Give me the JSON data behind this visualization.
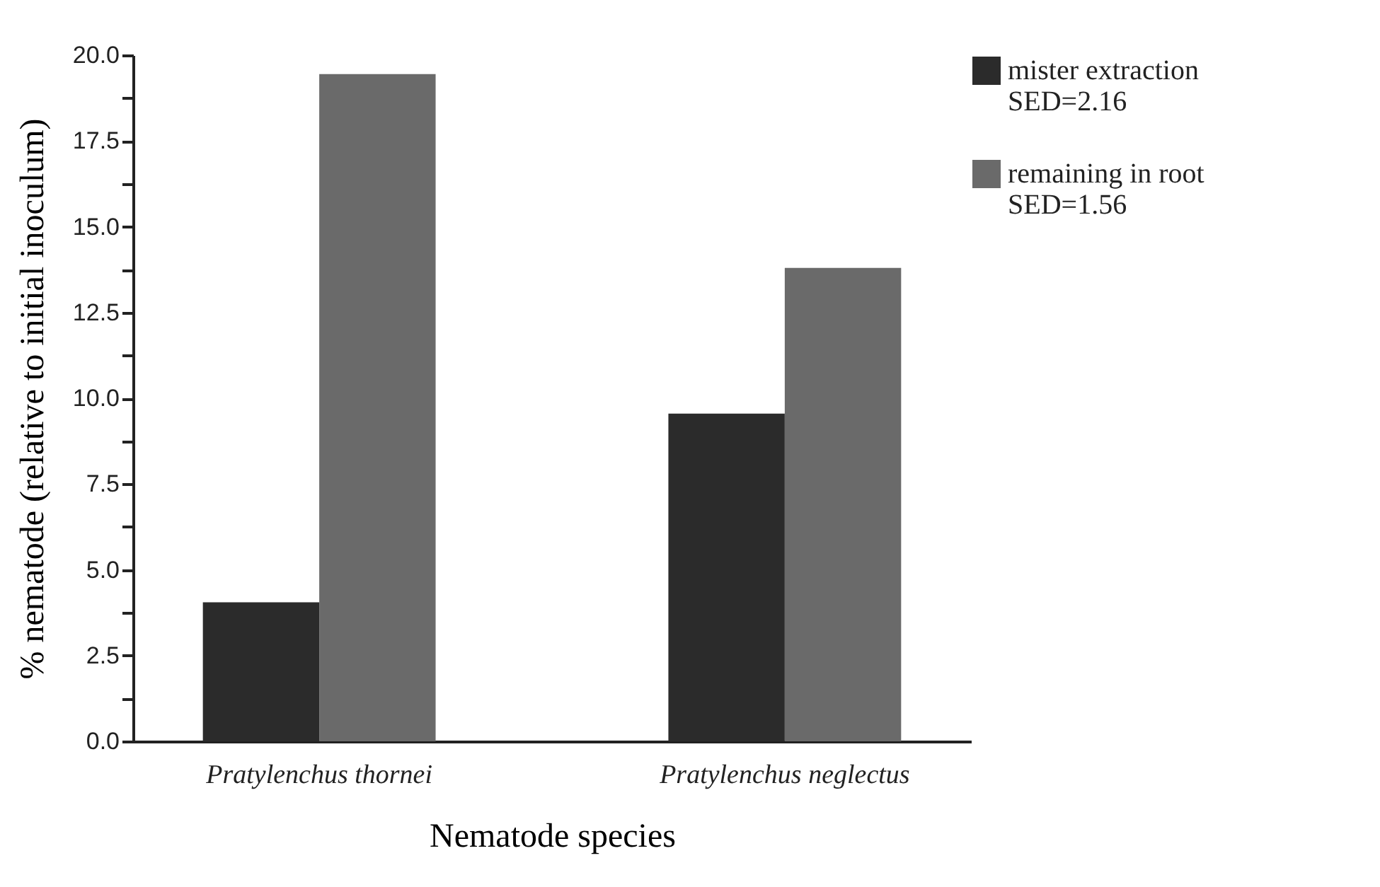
{
  "chart_data": {
    "type": "bar",
    "xlabel": "Nematode species",
    "ylabel": "% nematode (relative to initial inoculum)",
    "categories": [
      "Pratylenchus thornei",
      "Pratylenchus neglectus"
    ],
    "series": [
      {
        "name": "mister extraction\nSED=2.16",
        "color": "#2b2b2b",
        "values": [
          4.05,
          9.55
        ]
      },
      {
        "name": "remaining in root\nSED=1.56",
        "color": "#6a6a6a",
        "values": [
          19.45,
          13.8
        ]
      }
    ],
    "ylim": [
      0,
      20
    ],
    "yticks": [
      {
        "value": 0,
        "label": "0.0"
      },
      {
        "value": 1.25,
        "label": null
      },
      {
        "value": 2.5,
        "label": "2.5"
      },
      {
        "value": 3.75,
        "label": null
      },
      {
        "value": 5,
        "label": "5.0"
      },
      {
        "value": 6.25,
        "label": null
      },
      {
        "value": 7.5,
        "label": "7.5"
      },
      {
        "value": 8.75,
        "label": null
      },
      {
        "value": 10,
        "label": "10.0"
      },
      {
        "value": 11.25,
        "label": null
      },
      {
        "value": 12.5,
        "label": "12.5"
      },
      {
        "value": 13.75,
        "label": null
      },
      {
        "value": 15,
        "label": "15.0"
      },
      {
        "value": 16.25,
        "label": null
      },
      {
        "value": 17.5,
        "label": "17.5"
      },
      {
        "value": 18.75,
        "label": null
      },
      {
        "value": 20,
        "label": "20.0"
      }
    ],
    "grid": false,
    "legend": "right"
  }
}
